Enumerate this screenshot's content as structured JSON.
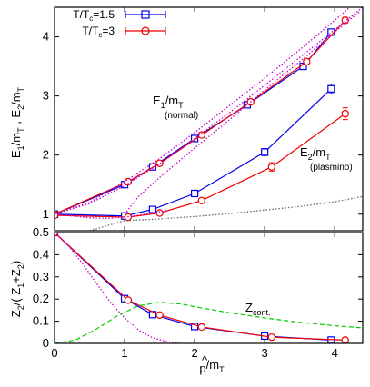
{
  "chart_data": [
    {
      "type": "line",
      "ylabel": "E_1/m_T , E_2/m_T",
      "xlim": [
        0,
        4.4
      ],
      "ylim": [
        0.72,
        4.5
      ],
      "xticks": [
        "0",
        "1",
        "2",
        "3",
        "4"
      ],
      "yticks": [
        "1",
        "2",
        "3",
        "4"
      ],
      "legend": {
        "position": "top-left",
        "entries": [
          "T/T_c=1.5",
          "T/T_c=3"
        ]
      },
      "annotations": [
        {
          "main": "E_1/m_T",
          "sub": "(normal)",
          "at": [
            1.55,
            2.75
          ]
        },
        {
          "main": "E_2/m_T",
          "sub": "(plasmino)",
          "at": [
            3.5,
            1.95
          ]
        }
      ],
      "series": [
        {
          "name": "T/T_c=1.5",
          "color": "#0000ee",
          "marker": "square",
          "branches": [
            {
              "x": [
                0,
                1.0,
                1.4,
                2.0,
                2.75,
                3.55,
                3.95
              ],
              "y": [
                1.0,
                1.5,
                1.8,
                2.28,
                2.85,
                3.5,
                4.08
              ],
              "err": [
                0.02,
                0.03,
                0.03,
                0.04,
                0.04,
                0.05,
                0.05
              ]
            },
            {
              "x": [
                0,
                1.0,
                1.4,
                2.0,
                3.0,
                3.95
              ],
              "y": [
                1.0,
                0.97,
                1.08,
                1.35,
                2.05,
                3.12
              ],
              "err": [
                0.02,
                0.03,
                0.03,
                0.05,
                0.06,
                0.08
              ]
            }
          ]
        },
        {
          "name": "T/T_c=3",
          "color": "#ee0000",
          "marker": "circle",
          "branches": [
            {
              "x": [
                0,
                1.05,
                1.5,
                2.1,
                2.8,
                3.6,
                4.15
              ],
              "y": [
                1.0,
                1.55,
                1.86,
                2.34,
                2.9,
                3.58,
                4.28
              ],
              "err": [
                0.02,
                0.03,
                0.03,
                0.04,
                0.04,
                0.05,
                0.05
              ]
            },
            {
              "x": [
                0,
                1.05,
                1.5,
                2.1,
                3.1,
                4.15
              ],
              "y": [
                0.98,
                0.95,
                1.02,
                1.23,
                1.8,
                2.7
              ],
              "err": [
                0.02,
                0.03,
                0.03,
                0.04,
                0.07,
                0.1
              ]
            }
          ]
        },
        {
          "color": "#cc00cc",
          "style": "dotted",
          "branches": [
            {
              "x": [
                0,
                0.5,
                1.0,
                1.5,
                2.0,
                2.5,
                3.0,
                3.5,
                4.0,
                4.4
              ],
              "y": [
                1.0,
                1.18,
                1.48,
                1.85,
                2.28,
                2.72,
                3.18,
                3.65,
                4.12,
                4.5
              ]
            },
            {
              "x": [
                0,
                0.5,
                1.0,
                1.5,
                2.0,
                2.5,
                3.0,
                3.5,
                4.0,
                4.4
              ],
              "y": [
                1.0,
                1.2,
                1.55,
                1.94,
                2.38,
                2.84,
                3.3,
                3.78,
                4.28,
                4.68
              ]
            },
            {
              "x": [
                1.0,
                1.2,
                1.5,
                2.0,
                2.5,
                3.0,
                3.5,
                4.0,
                4.35
              ],
              "y": [
                1.0,
                1.3,
                1.62,
                2.12,
                2.6,
                3.1,
                3.58,
                4.08,
                4.42
              ]
            },
            {
              "x": [
                0,
                0.25,
                0.5,
                0.75,
                1.0,
                1.3,
                1.6
              ],
              "y": [
                1.0,
                0.97,
                0.94,
                0.93,
                0.95,
                1.0,
                1.06
              ]
            }
          ]
        },
        {
          "color": "#666666",
          "style": "dotted",
          "branches": [
            {
              "x": [
                0.5,
                1.0,
                1.5,
                2.0,
                2.5,
                3.0,
                3.5,
                4.0,
                4.4
              ],
              "y": [
                0.72,
                0.89,
                0.92,
                0.96,
                1.01,
                1.07,
                1.13,
                1.21,
                1.3
              ]
            }
          ]
        }
      ]
    },
    {
      "type": "line",
      "xlabel": "p̂/m_T",
      "ylabel": "Z_2/(Z_1+Z_2)",
      "xlim": [
        0,
        4.4
      ],
      "ylim": [
        0,
        0.5
      ],
      "xticks": [
        "0",
        "1",
        "2",
        "3",
        "4"
      ],
      "yticks": [
        "0",
        "0.1",
        "0.2",
        "0.3",
        "0.4",
        "0.5"
      ],
      "annotations": [
        {
          "main": "Z_cont.",
          "at": [
            2.8,
            0.145
          ]
        }
      ],
      "series": [
        {
          "name": "T/T_c=1.5",
          "color": "#0000ee",
          "marker": "square",
          "branches": [
            {
              "x": [
                0,
                1.0,
                1.4,
                2.0,
                3.0,
                3.95
              ],
              "y": [
                0.5,
                0.202,
                0.13,
                0.076,
                0.033,
                0.015
              ]
            }
          ]
        },
        {
          "name": "T/T_c=3",
          "color": "#ee0000",
          "marker": "circle",
          "branches": [
            {
              "x": [
                0,
                1.05,
                1.5,
                2.1,
                3.1,
                4.15
              ],
              "y": [
                0.5,
                0.195,
                0.128,
                0.074,
                0.028,
                0.015
              ]
            }
          ]
        },
        {
          "color": "#cc00cc",
          "style": "dotted",
          "branches": [
            {
              "x": [
                0,
                0.2,
                0.4,
                0.6,
                0.8,
                1.0,
                1.2,
                1.4,
                1.6,
                1.8
              ],
              "y": [
                0.5,
                0.44,
                0.36,
                0.27,
                0.185,
                0.115,
                0.06,
                0.025,
                0.008,
                0.0
              ]
            }
          ]
        },
        {
          "color": "#00cc00",
          "style": "dashed",
          "branches": [
            {
              "x": [
                0,
                0.3,
                0.6,
                0.9,
                1.2,
                1.5,
                1.8,
                2.1,
                2.5,
                3.0,
                3.5,
                4.0,
                4.4
              ],
              "y": [
                0.0,
                0.015,
                0.065,
                0.125,
                0.17,
                0.185,
                0.178,
                0.16,
                0.138,
                0.115,
                0.095,
                0.08,
                0.07
              ]
            }
          ]
        }
      ]
    }
  ]
}
